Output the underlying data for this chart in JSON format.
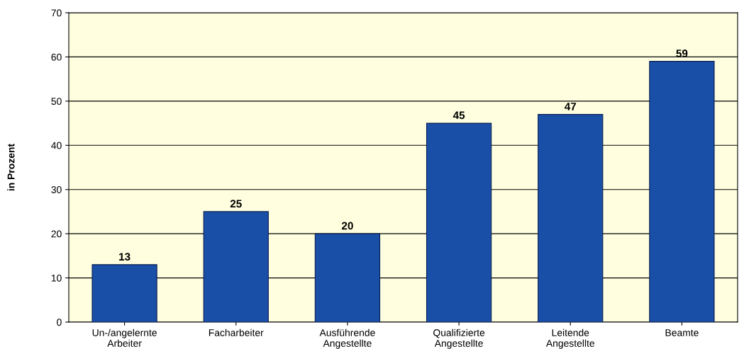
{
  "chart_data": {
    "type": "bar",
    "ylabel": "in Prozent",
    "categories": [
      "Un-/angelernte\nArbeiter",
      "Facharbeiter",
      "Ausführende\nAngestellte",
      "Qualifizierte\nAngestellte",
      "Leitende\nAngestellte",
      "Beamte"
    ],
    "values": [
      13,
      25,
      20,
      45,
      47,
      59
    ],
    "color": "#1a4fa8",
    "ylim": [
      0,
      70
    ],
    "yticks": [
      0,
      10,
      20,
      30,
      40,
      50,
      60,
      70
    ],
    "grid": "y",
    "data_labels": true
  }
}
